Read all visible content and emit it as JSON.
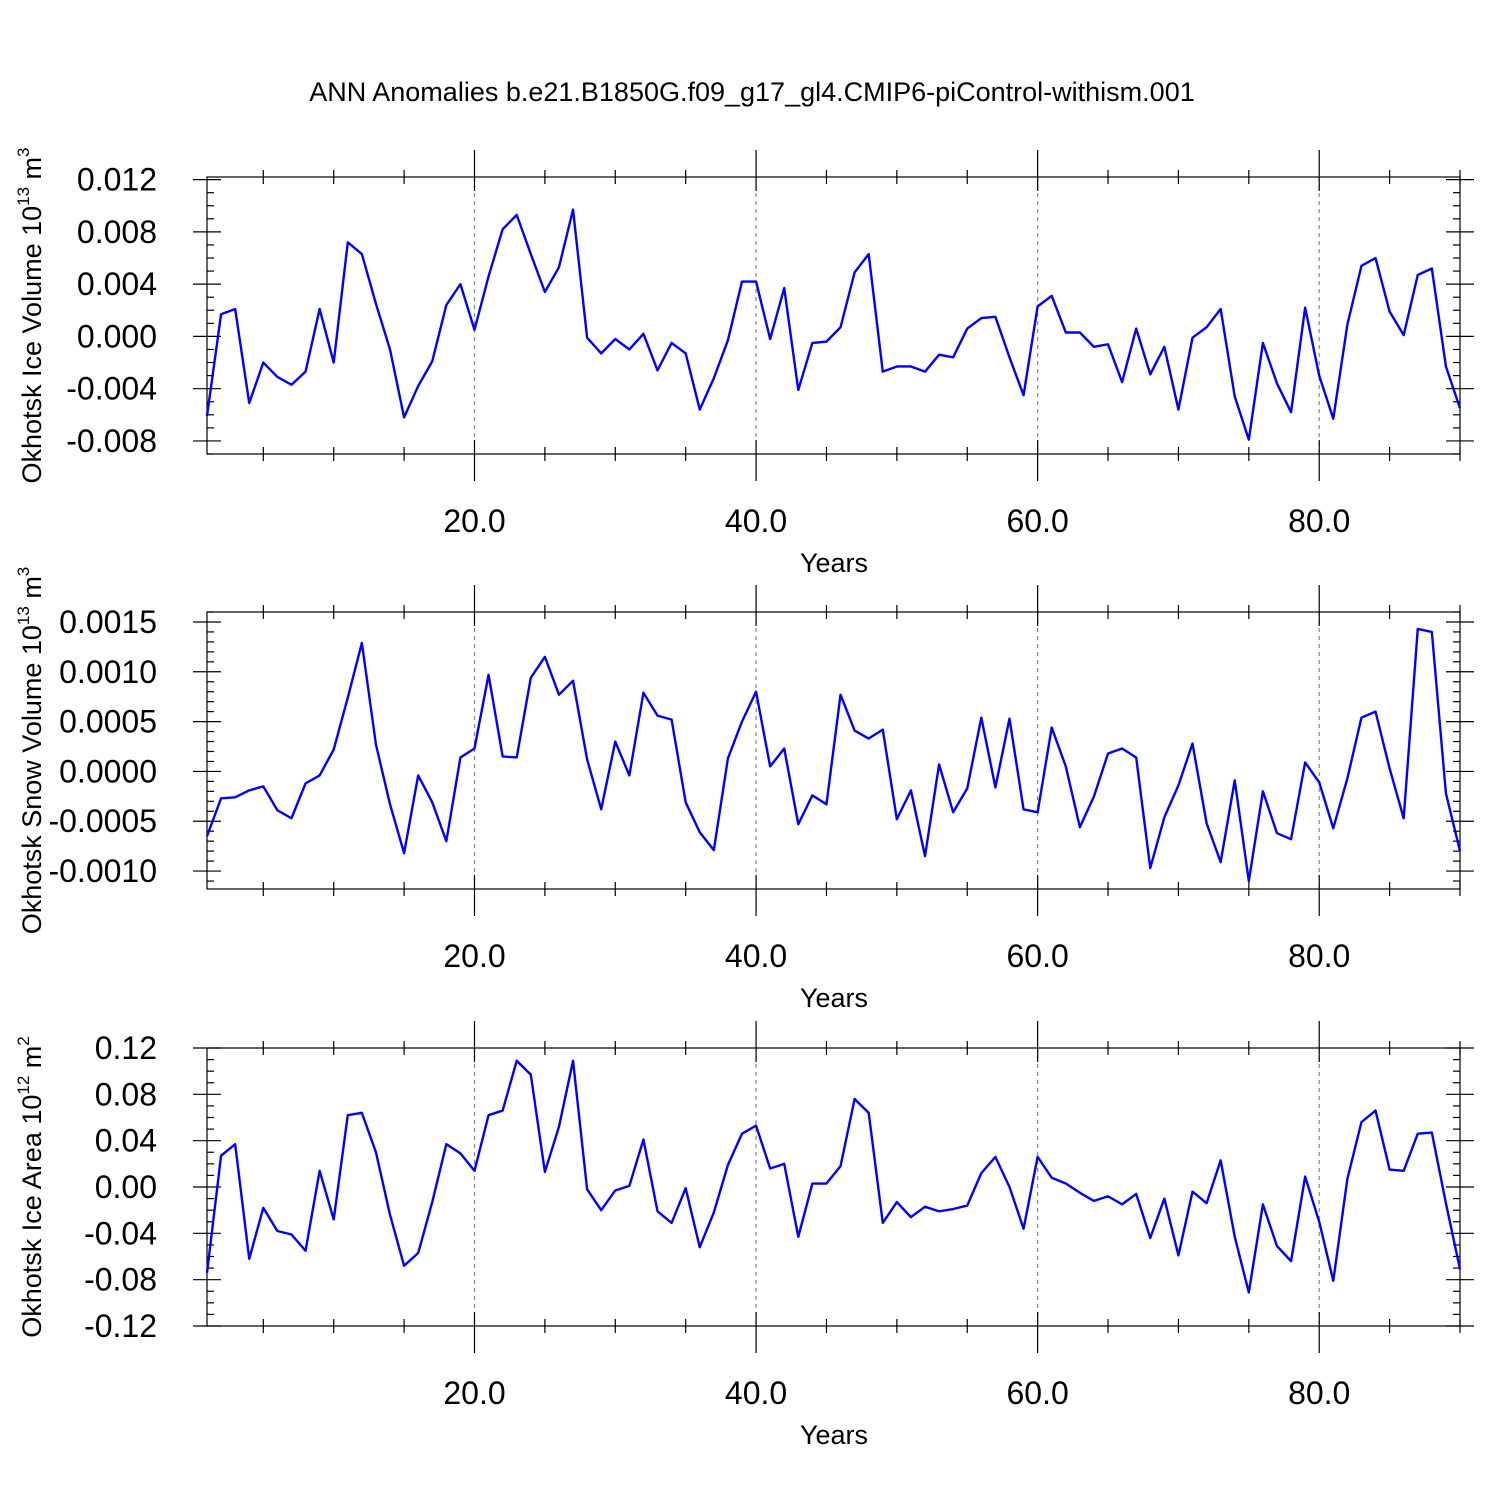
{
  "title": "ANN Anomalies b.e21.B1850G.f09_g17_gl4.CMIP6-piControl-withism.001",
  "colors": {
    "line": "#0000ff",
    "grid": "#888888",
    "axis": "#000000"
  },
  "chart_data": [
    {
      "type": "line",
      "ylabel": "Okhotsk Ice Volume 10",
      "ylabel_exp": "13",
      "ylabel_unit": " m",
      "ylabel_unit_exp": "3",
      "xlabel": "Years",
      "xlim": [
        1,
        90
      ],
      "ylim": [
        -0.009,
        0.0122
      ],
      "yticks": [
        -0.008,
        -0.004,
        0.0,
        0.004,
        0.008,
        0.012
      ],
      "ytick_labels": [
        "-0.008",
        "-0.004",
        "0.000",
        "0.004",
        "0.008",
        "0.012"
      ],
      "yminor_step": 0.001,
      "xticks": [
        20,
        40,
        60,
        80
      ],
      "xtick_labels": [
        "20.0",
        "40.0",
        "60.0",
        "80.0"
      ],
      "grid": "x-dashed",
      "series": [
        {
          "values": [
            -0.0061,
            0.0017,
            0.0021,
            -0.0051,
            -0.002,
            -0.0031,
            -0.0037,
            -0.0027,
            0.0021,
            -0.002,
            0.0072,
            0.0063,
            0.0025,
            -0.001,
            -0.0062,
            -0.0038,
            -0.0019,
            0.0024,
            0.004,
            0.0005,
            0.0046,
            0.0082,
            0.0093,
            0.0063,
            0.0034,
            0.0053,
            0.0097,
            -0.0001,
            -0.0013,
            -0.0002,
            -0.001,
            0.0002,
            -0.0026,
            -0.0005,
            -0.0013,
            -0.0056,
            -0.0032,
            -0.0003,
            0.0042,
            0.0042,
            -0.0002,
            0.0037,
            -0.0041,
            -0.0005,
            -0.0004,
            0.0007,
            0.0049,
            0.0063,
            -0.0027,
            -0.0023,
            -0.0023,
            -0.0027,
            -0.0014,
            -0.0016,
            0.0006,
            0.0014,
            0.0015,
            -0.0016,
            -0.0045,
            0.0023,
            0.0031,
            0.0003,
            0.0003,
            -0.0008,
            -0.0006,
            -0.0035,
            0.0006,
            -0.0029,
            -0.0008,
            -0.0056,
            -0.0001,
            0.0007,
            0.0021,
            -0.0046,
            -0.0079,
            -0.0005,
            -0.0036,
            -0.0058,
            0.0022,
            -0.003,
            -0.0063,
            0.0009,
            0.0054,
            0.006,
            0.0019,
            0.0001,
            0.0047,
            0.0052,
            -0.0023,
            -0.0055
          ]
        }
      ]
    },
    {
      "type": "line",
      "ylabel": "Okhotsk Snow Volume 10",
      "ylabel_exp": "13",
      "ylabel_unit": " m",
      "ylabel_unit_exp": "3",
      "xlabel": "Years",
      "xlim": [
        1,
        90
      ],
      "ylim": [
        -0.00118,
        0.0016
      ],
      "yticks": [
        -0.001,
        -0.0005,
        0.0,
        0.0005,
        0.001,
        0.0015
      ],
      "ytick_labels": [
        "-0.0010",
        "-0.0005",
        "0.0000",
        "0.0005",
        "0.0010",
        "0.0015"
      ],
      "yminor_step": 0.0001,
      "xticks": [
        20,
        40,
        60,
        80
      ],
      "xtick_labels": [
        "20.0",
        "40.0",
        "60.0",
        "80.0"
      ],
      "grid": "x-dashed",
      "series": [
        {
          "values": [
            -0.00065,
            -0.00027,
            -0.00026,
            -0.00019,
            -0.00015,
            -0.00039,
            -0.00047,
            -0.00012,
            -4e-05,
            0.00022,
            0.00074,
            0.00129,
            0.00027,
            -0.00033,
            -0.00082,
            -4e-05,
            -0.00031,
            -0.0007,
            0.00014,
            0.00023,
            0.00097,
            0.00015,
            0.00014,
            0.00094,
            0.00115,
            0.00077,
            0.00091,
            0.00012,
            -0.00038,
            0.0003,
            -4e-05,
            0.00079,
            0.00056,
            0.00052,
            -0.00031,
            -0.00061,
            -0.00079,
            0.00013,
            0.0005,
            0.0008,
            5e-05,
            0.00023,
            -0.00053,
            -0.00024,
            -0.00033,
            0.00077,
            0.00041,
            0.00033,
            0.00042,
            -0.00048,
            -0.00019,
            -0.00085,
            7e-05,
            -0.00041,
            -0.00017,
            0.00054,
            -0.00016,
            0.00053,
            -0.00038,
            -0.00041,
            0.00044,
            5e-05,
            -0.00056,
            -0.00025,
            0.00018,
            0.00023,
            0.00014,
            -0.00097,
            -0.00046,
            -0.00014,
            0.00028,
            -0.00052,
            -0.00091,
            -9e-05,
            -0.0011,
            -0.0002,
            -0.00062,
            -0.00068,
            9e-05,
            -0.00011,
            -0.00057,
            -7e-05,
            0.00054,
            0.0006,
            3e-05,
            -0.00047,
            0.00143,
            0.0014,
            -0.00022,
            -0.0008
          ]
        }
      ]
    },
    {
      "type": "line",
      "ylabel": "Okhotsk Ice Area 10",
      "ylabel_exp": "12",
      "ylabel_unit": " m",
      "ylabel_unit_exp": "2",
      "xlabel": "Years",
      "xlim": [
        1,
        90
      ],
      "ylim": [
        -0.12,
        0.12
      ],
      "yticks": [
        -0.12,
        -0.08,
        -0.04,
        0.0,
        0.04,
        0.08,
        0.12
      ],
      "ytick_labels": [
        "-0.12",
        "-0.08",
        "-0.04",
        "0.00",
        "0.04",
        "0.08",
        "0.12"
      ],
      "yminor_step": 0.01,
      "xticks": [
        20,
        40,
        60,
        80
      ],
      "xtick_labels": [
        "20.0",
        "40.0",
        "60.0",
        "80.0"
      ],
      "grid": "x-dashed",
      "series": [
        {
          "values": [
            -0.074,
            0.027,
            0.037,
            -0.062,
            -0.018,
            -0.038,
            -0.041,
            -0.055,
            0.014,
            -0.028,
            0.062,
            0.064,
            0.03,
            -0.024,
            -0.068,
            -0.057,
            -0.013,
            0.037,
            0.029,
            0.014,
            0.062,
            0.066,
            0.109,
            0.097,
            0.013,
            0.052,
            0.109,
            -0.002,
            -0.02,
            -0.003,
            0.001,
            0.041,
            -0.021,
            -0.031,
            -0.001,
            -0.052,
            -0.022,
            0.019,
            0.046,
            0.053,
            0.016,
            0.02,
            -0.043,
            0.003,
            0.003,
            0.018,
            0.076,
            0.064,
            -0.031,
            -0.013,
            -0.026,
            -0.017,
            -0.021,
            -0.019,
            -0.016,
            0.012,
            0.026,
            0.0,
            -0.036,
            0.026,
            0.008,
            0.003,
            -0.005,
            -0.012,
            -0.008,
            -0.015,
            -0.006,
            -0.044,
            -0.01,
            -0.059,
            -0.004,
            -0.014,
            0.023,
            -0.043,
            -0.091,
            -0.015,
            -0.051,
            -0.064,
            0.009,
            -0.03,
            -0.081,
            0.007,
            0.056,
            0.066,
            0.015,
            0.014,
            0.046,
            0.047,
            -0.014,
            -0.071
          ]
        }
      ]
    }
  ]
}
